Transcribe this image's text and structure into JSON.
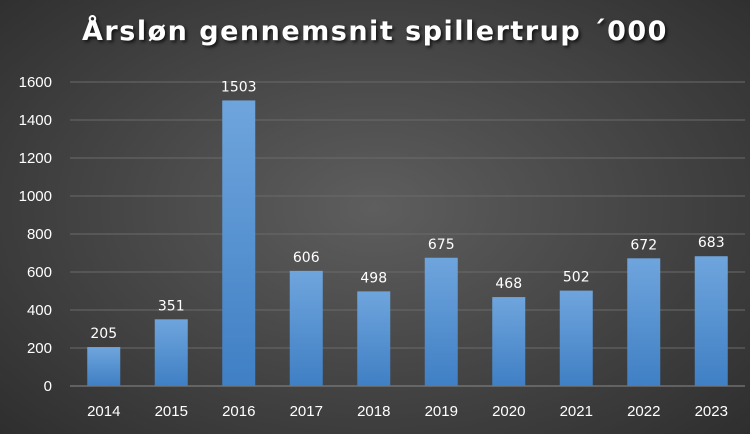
{
  "chart_data": {
    "type": "bar",
    "title": "Årsløn gennemsnit spillertrup ´000",
    "xlabel": "",
    "ylabel": "",
    "categories": [
      "2014",
      "2015",
      "2016",
      "2017",
      "2018",
      "2019",
      "2020",
      "2021",
      "2022",
      "2023"
    ],
    "values": [
      205,
      351,
      1503,
      606,
      498,
      675,
      468,
      502,
      672,
      683
    ],
    "ylim": [
      0,
      1600
    ],
    "yticks": [
      0,
      200,
      400,
      600,
      800,
      1000,
      1200,
      1400,
      1600
    ],
    "grid": true,
    "legend": "none",
    "colors": {
      "bar_top": "#6fa5dd",
      "bar_bottom": "#3f7fc4",
      "background": "#474747",
      "text": "#ffffff",
      "grid": "#6a6a6a"
    }
  }
}
